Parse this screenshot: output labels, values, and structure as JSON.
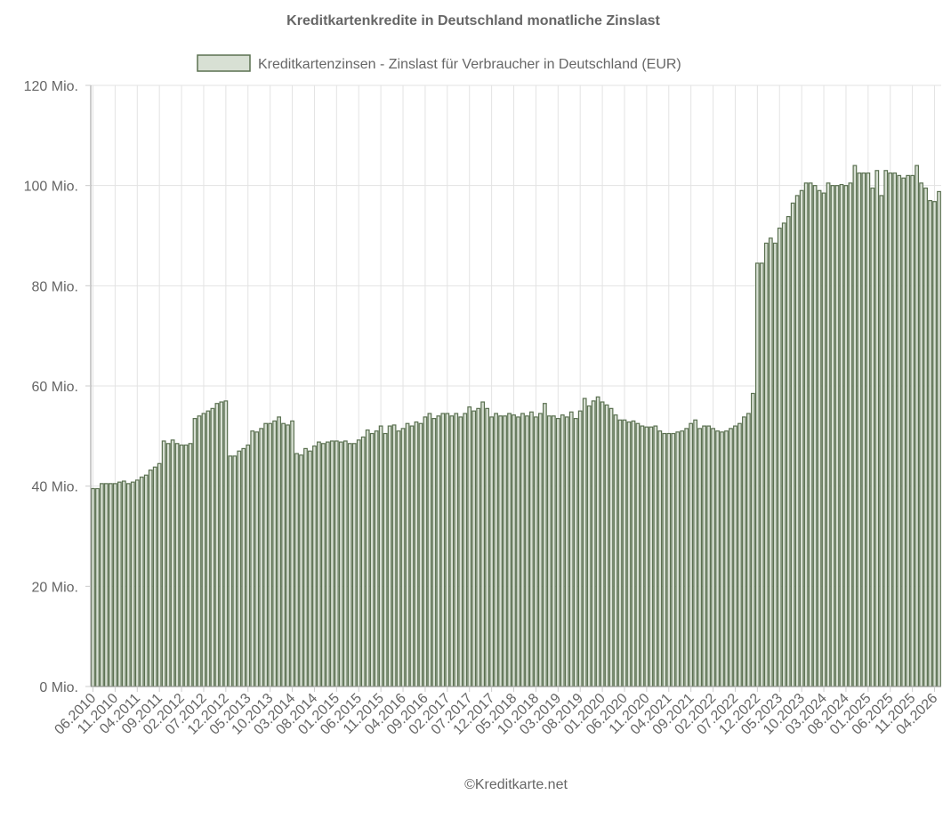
{
  "chart_data": {
    "type": "bar",
    "title": "Kreditkartenkredite in Deutschland monatliche Zinslast",
    "legend_position": "top",
    "grid": true,
    "ylim": [
      0,
      120000000
    ],
    "y_ticks": [
      0,
      20000000,
      40000000,
      60000000,
      80000000,
      100000000,
      120000000
    ],
    "y_tick_labels": [
      "0 Mio.",
      "20 Mio.",
      "40 Mio.",
      "60 Mio.",
      "80 Mio.",
      "100 Mio.",
      "120 Mio."
    ],
    "x_start": "06.2010",
    "x_tick_labels": [
      "06.2010",
      "11.2010",
      "04.2011",
      "09.2011",
      "02.2012",
      "07.2012",
      "12.2012",
      "05.2013",
      "10.2013",
      "03.2014",
      "08.2014",
      "01.2015",
      "06.2015",
      "11.2015",
      "04.2016",
      "09.2016",
      "02.2017",
      "07.2017",
      "12.2017",
      "05.2018",
      "10.2018",
      "03.2019",
      "08.2019",
      "01.2020",
      "06.2020",
      "11.2020",
      "04.2021",
      "09.2021",
      "02.2022",
      "07.2022",
      "12.2022",
      "05.2023",
      "10.2023",
      "03.2024",
      "08.2024",
      "01.2025",
      "06.2025",
      "11.2025",
      "04.2026"
    ],
    "series": [
      {
        "name": "Kreditkartenzinsen - Zinslast für Verbraucher in Deutschland (EUR)",
        "color": "#5a7050",
        "legend_fill": "#d8e0d4",
        "values_mio": [
          39.5,
          39.5,
          40.5,
          40.5,
          40.5,
          40.5,
          40.8,
          41.0,
          40.5,
          40.8,
          41.2,
          41.8,
          42.2,
          43.2,
          43.8,
          44.5,
          49.0,
          48.5,
          49.2,
          48.5,
          48.2,
          48.2,
          48.5,
          53.5,
          54.0,
          54.5,
          55.0,
          55.5,
          56.5,
          56.8,
          57.0,
          46.0,
          46.0,
          47.0,
          47.5,
          48.2,
          51.0,
          50.8,
          51.5,
          52.5,
          52.5,
          53.0,
          53.8,
          52.5,
          52.2,
          53.0,
          46.5,
          46.2,
          47.5,
          47.0,
          48.0,
          48.8,
          48.5,
          48.8,
          49.0,
          49.0,
          48.8,
          49.0,
          48.5,
          48.5,
          49.2,
          49.8,
          51.2,
          50.5,
          51.0,
          52.0,
          50.5,
          52.0,
          52.2,
          51.0,
          51.5,
          52.5,
          52.0,
          52.8,
          52.5,
          53.8,
          54.5,
          53.5,
          54.0,
          54.5,
          54.5,
          54.0,
          54.5,
          53.8,
          54.5,
          55.8,
          55.0,
          55.5,
          56.8,
          55.5,
          53.8,
          54.5,
          54.0,
          54.0,
          54.5,
          54.2,
          53.8,
          54.5,
          54.0,
          54.8,
          53.8,
          54.5,
          56.5,
          54.0,
          54.0,
          53.5,
          54.2,
          53.8,
          54.8,
          53.5,
          55.0,
          57.5,
          56.0,
          57.0,
          57.8,
          56.8,
          56.2,
          55.5,
          54.2,
          53.2,
          53.2,
          52.8,
          53.0,
          52.5,
          52.0,
          51.8,
          51.8,
          52.0,
          51.0,
          50.5,
          50.5,
          50.5,
          50.8,
          51.0,
          51.5,
          52.5,
          53.2,
          51.5,
          52.0,
          52.0,
          51.5,
          51.0,
          50.8,
          51.0,
          51.5,
          52.0,
          52.5,
          53.8,
          54.5,
          58.5,
          84.5,
          84.5,
          88.5,
          89.5,
          88.5,
          91.5,
          92.5,
          93.8,
          96.5,
          98.0,
          99.0,
          100.5,
          100.5,
          100.0,
          99.0,
          98.5,
          100.5,
          100.0,
          100.0,
          100.2,
          100.0,
          100.5,
          104.0,
          102.5,
          102.5,
          102.5,
          99.5,
          103.0,
          98.0,
          103.0,
          102.5,
          102.5,
          102.0,
          101.5,
          102.0,
          102.0,
          104.0,
          100.5,
          99.5,
          97.0,
          96.8,
          98.8
        ]
      }
    ]
  },
  "footer": {
    "copyright": "©Kreditkarte.net"
  }
}
